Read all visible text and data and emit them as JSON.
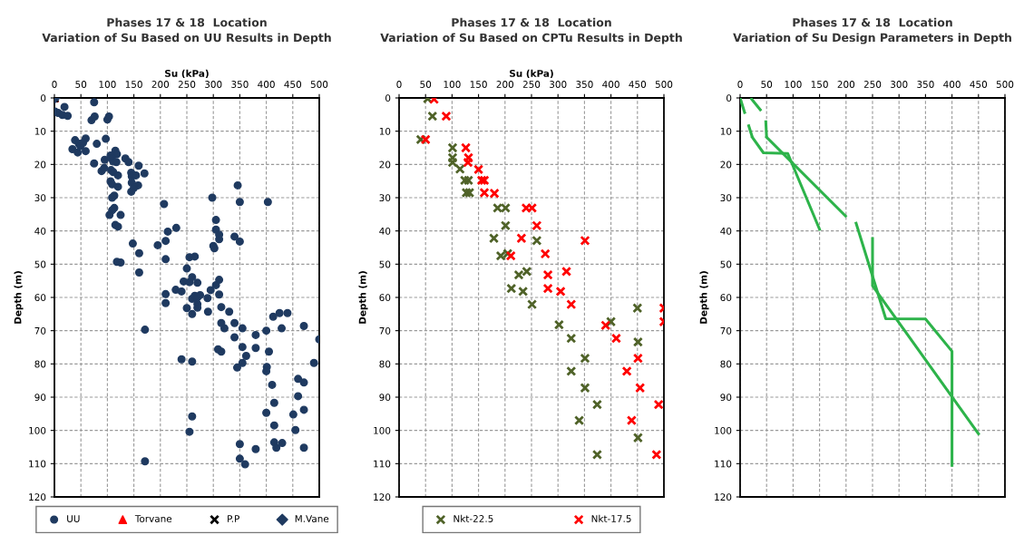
{
  "chart_data": [
    {
      "type": "scatter",
      "title": "Phases 17 & 18  Location",
      "subtitle": "Variation of Su Based on UU Results in Depth",
      "xlabel": "Su (kPa)",
      "ylabel": "Depth (m)",
      "xlim": [
        0,
        500
      ],
      "xticks": [
        0,
        50,
        100,
        150,
        200,
        250,
        300,
        350,
        400,
        450,
        500
      ],
      "ylim": [
        120,
        0
      ],
      "yticks": [
        0,
        10,
        20,
        30,
        40,
        50,
        60,
        70,
        80,
        90,
        100,
        110,
        120
      ],
      "grid": true,
      "legend": "bottom",
      "series": [
        {
          "name": "UU",
          "color": "#1f3a60",
          "marker": "circle",
          "x": [
            1,
            7,
            19,
            15,
            25,
            75,
            70,
            76,
            100,
            103,
            39,
            34,
            46,
            49,
            59,
            54,
            44,
            59,
            80,
            97,
            75,
            95,
            106,
            115,
            118,
            108,
            111,
            117,
            134,
            140,
            89,
            94,
            107,
            111,
            120,
            159,
            170,
            145,
            146,
            154,
            106,
            109,
            120,
            158,
            146,
            145,
            150,
            113,
            109,
            113,
            109,
            104,
            125,
            115,
            120,
            148,
            160,
            118,
            125,
            160,
            346,
            298,
            350,
            403,
            207,
            305,
            305,
            311,
            311,
            340,
            350,
            230,
            214,
            210,
            195,
            300,
            302,
            210,
            255,
            265,
            250,
            244,
            255,
            260,
            270,
            311,
            305,
            229,
            240,
            295,
            311,
            210,
            210,
            260,
            265,
            270,
            275,
            289,
            250,
            270,
            270,
            260,
            290,
            315,
            330,
            440,
            413,
            171,
            425,
            315,
            321,
            340,
            355,
            380,
            400,
            429,
            471,
            500,
            340,
            309,
            315,
            355,
            380,
            405,
            362,
            355,
            345,
            240,
            260,
            401,
            400,
            490,
            460,
            471,
            411,
            460,
            415,
            471,
            400,
            451,
            260,
            255,
            455,
            415,
            350,
            380,
            415,
            419,
            430,
            471,
            350,
            360,
            171
          ],
          "values": [
            4.1,
            4.5,
            2.7,
            5.1,
            5.4,
            1.3,
            6.7,
            5.6,
            6.5,
            5.6,
            12.7,
            15.4,
            13.8,
            14.5,
            12.2,
            13.5,
            16.4,
            16,
            13.8,
            12.3,
            19.7,
            18.6,
            17.3,
            15.9,
            16.9,
            18.2,
            19.1,
            19.3,
            18.2,
            19.3,
            22,
            21.1,
            21.7,
            22.3,
            23.3,
            20.4,
            22.7,
            22.5,
            23.6,
            23.3,
            25.1,
            26,
            26.7,
            26.3,
            25.5,
            28.2,
            27.1,
            29.4,
            30,
            33.1,
            33.8,
            35.2,
            35.2,
            38.2,
            38.7,
            43.8,
            46.7,
            49.3,
            49.5,
            52.5,
            26.3,
            30,
            31.3,
            31.3,
            31.9,
            36.7,
            39.6,
            41.1,
            42.5,
            41.7,
            43.2,
            39.1,
            40.2,
            43,
            44.3,
            44.5,
            45.2,
            48.5,
            47.9,
            47.7,
            51.3,
            55.2,
            55.4,
            53.9,
            55.6,
            54.7,
            56.3,
            57.7,
            58.2,
            57.8,
            59.1,
            59,
            61.7,
            60.4,
            59.5,
            60,
            59.3,
            60.2,
            63.2,
            62,
            63.1,
            65,
            64.3,
            62.9,
            64.3,
            64.7,
            65.8,
            69.7,
            64.7,
            67.7,
            69.3,
            67.7,
            69.3,
            71.3,
            70,
            69.3,
            68.6,
            72.6,
            72,
            75.6,
            76.3,
            74.9,
            75.2,
            76.3,
            77.6,
            79.7,
            81.1,
            78.6,
            79.3,
            80.9,
            82.2,
            79.7,
            84.5,
            85.6,
            86.3,
            89.7,
            91.7,
            93.8,
            94.7,
            95.2,
            95.8,
            100.4,
            99.9,
            98.5,
            104.1,
            105.6,
            103.6,
            105.2,
            103.8,
            105.2,
            108.5,
            110.2,
            109.3
          ]
        },
        {
          "name": "Torvane",
          "color": "#ff0000",
          "marker": "triangle",
          "x": [
            0
          ],
          "values": [
            0
          ]
        },
        {
          "name": "P.P",
          "color": "#000000",
          "marker": "cross",
          "x": [
            0
          ],
          "values": [
            0
          ]
        },
        {
          "name": "M.Vane",
          "color": "#1f3a60",
          "marker": "diamond",
          "x": [
            0
          ],
          "values": [
            0
          ]
        }
      ]
    },
    {
      "type": "scatter",
      "title": "Phases 17 & 18  Location",
      "subtitle": "Variation of Su Based on CPTu Results in Depth",
      "xlabel": "Su (kPa)",
      "ylabel": "Depth (m)",
      "xlim": [
        0,
        500
      ],
      "xticks": [
        0,
        50,
        100,
        150,
        200,
        250,
        300,
        350,
        400,
        450,
        500
      ],
      "ylim": [
        120,
        0
      ],
      "yticks": [
        0,
        10,
        20,
        30,
        40,
        50,
        60,
        70,
        80,
        90,
        100,
        110,
        120
      ],
      "grid": true,
      "legend": "bottom",
      "series": [
        {
          "name": "Nkt-22.5",
          "color": "#4f6228",
          "marker": "cross",
          "x": [
            54,
            63,
            41,
            101,
            101,
            101,
            115,
            124,
            131,
            127,
            133,
            186,
            201,
            201,
            179,
            260,
            192,
            205,
            241,
            226,
            212,
            234,
            251,
            450,
            302,
            400,
            325,
            451,
            351,
            325,
            351,
            374,
            340,
            451,
            374
          ],
          "values": [
            0.2,
            5.5,
            12.5,
            15,
            18,
            19.4,
            21.4,
            24.8,
            24.8,
            28.5,
            28.5,
            33.1,
            33.1,
            38.4,
            42.2,
            42.9,
            47.5,
            46.8,
            52.2,
            53.2,
            57.3,
            58.2,
            62.1,
            63.2,
            68.2,
            67.3,
            72.3,
            73.4,
            78.3,
            82.2,
            87.2,
            92.2,
            97,
            102.2,
            107.3
          ]
        },
        {
          "name": "Nkt-17.5",
          "color": "#ff0000",
          "marker": "cross",
          "x": [
            66,
            89,
            50,
            126,
            131,
            130,
            150,
            156,
            161,
            161,
            180,
            240,
            251,
            260,
            231,
            351,
            276,
            211,
            281,
            316,
            281,
            305,
            325,
            500,
            500,
            390,
            410,
            451,
            430,
            455,
            490,
            439,
            486
          ],
          "values": [
            0.4,
            5.5,
            12.5,
            15,
            18,
            19.4,
            21.5,
            24.8,
            24.8,
            28.5,
            28.7,
            33.1,
            33.1,
            38.4,
            42.2,
            42.9,
            46.9,
            47.5,
            53.2,
            52.2,
            57.3,
            58.2,
            62.1,
            63.2,
            67.3,
            68.4,
            72.3,
            78.3,
            82.2,
            87.2,
            92.2,
            97,
            107.3
          ]
        }
      ]
    },
    {
      "type": "line",
      "title": "Phases 17 & 18  Location",
      "subtitle": "Variation of Su Design Parameters in Depth",
      "ylabel": "Depth (m)",
      "xlim": [
        0,
        500
      ],
      "xticks": [
        0,
        50,
        100,
        150,
        200,
        250,
        300,
        350,
        400,
        450,
        500
      ],
      "ylim": [
        120,
        0
      ],
      "yticks": [
        0,
        10,
        20,
        30,
        40,
        50,
        60,
        70,
        80,
        90,
        100,
        110,
        120
      ],
      "grid": true,
      "series": [
        {
          "color": "#2db34a",
          "line_style": "dashed",
          "x": [
            0,
            23
          ],
          "values": [
            0,
            11.8
          ]
        },
        {
          "color": "#2db34a",
          "line_style": "solid",
          "x": [
            23,
            44,
            90,
            150
          ],
          "values": [
            11.8,
            16.5,
            16.7,
            39.5
          ]
        },
        {
          "color": "#2db34a",
          "line_style": "dashed",
          "x": [
            20,
            48,
            50
          ],
          "values": [
            0,
            5.5,
            11.8
          ]
        },
        {
          "color": "#2db34a",
          "line_style": "solid",
          "x": [
            50,
            199
          ],
          "values": [
            11.8,
            35.5
          ]
        },
        {
          "color": "#2db34a",
          "line_style": "solid",
          "x": [
            219,
            275,
            350,
            400,
            400
          ],
          "values": [
            37.7,
            66.4,
            66.5,
            76.2,
            110.5
          ]
        },
        {
          "color": "#2db34a",
          "line_style": "solid",
          "x": [
            250,
            250,
            450
          ],
          "values": [
            42.3,
            56.5,
            101
          ]
        }
      ]
    }
  ]
}
